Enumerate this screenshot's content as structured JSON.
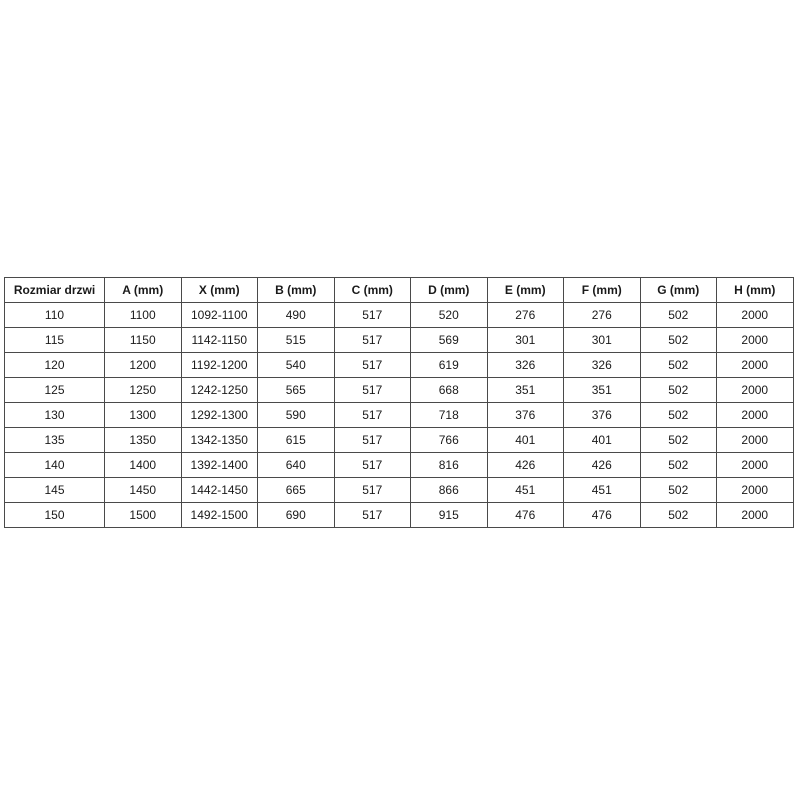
{
  "page": {
    "background": "#ffffff"
  },
  "table": {
    "title": "door-size-specification-table",
    "headers": [
      "Rozmiar drzwi",
      "A (mm)",
      "X (mm)",
      "B (mm)",
      "C (mm)",
      "D (mm)",
      "E (mm)",
      "F (mm)",
      "G (mm)",
      "H (mm)"
    ],
    "rows": [
      [
        "110",
        "1100",
        "1092-1100",
        "490",
        "517",
        "520",
        "276",
        "276",
        "502",
        "2000"
      ],
      [
        "115",
        "1150",
        "1142-1150",
        "515",
        "517",
        "569",
        "301",
        "301",
        "502",
        "2000"
      ],
      [
        "120",
        "1200",
        "1192-1200",
        "540",
        "517",
        "619",
        "326",
        "326",
        "502",
        "2000"
      ],
      [
        "125",
        "1250",
        "1242-1250",
        "565",
        "517",
        "668",
        "351",
        "351",
        "502",
        "2000"
      ],
      [
        "130",
        "1300",
        "1292-1300",
        "590",
        "517",
        "718",
        "376",
        "376",
        "502",
        "2000"
      ],
      [
        "135",
        "1350",
        "1342-1350",
        "615",
        "517",
        "766",
        "401",
        "401",
        "502",
        "2000"
      ],
      [
        "140",
        "1400",
        "1392-1400",
        "640",
        "517",
        "816",
        "426",
        "426",
        "502",
        "2000"
      ],
      [
        "145",
        "1450",
        "1442-1450",
        "665",
        "517",
        "866",
        "451",
        "451",
        "502",
        "2000"
      ],
      [
        "150",
        "1500",
        "1492-1500",
        "690",
        "517",
        "915",
        "476",
        "476",
        "502",
        "2000"
      ]
    ],
    "colors": {
      "border": "#4a4a4a",
      "text": "#1a1a1a",
      "background": "#ffffff"
    }
  }
}
